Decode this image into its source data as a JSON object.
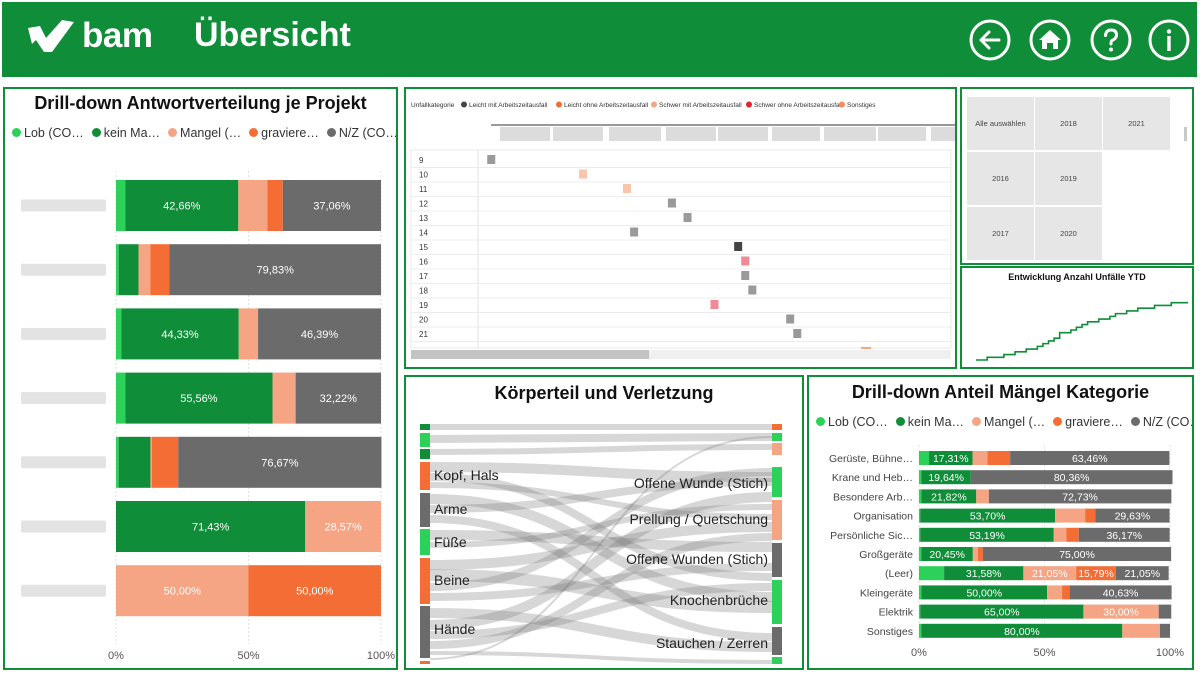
{
  "header": {
    "logo": "bam",
    "title": "Übersicht",
    "nav": [
      {
        "icon": "back-arrow-icon"
      },
      {
        "icon": "home-icon"
      },
      {
        "icon": "help-icon"
      },
      {
        "icon": "info-icon"
      }
    ]
  },
  "colors": {
    "brand": "#0f8d38",
    "lob": "#2bd158",
    "kein": "#0f8d38",
    "mangel": "#f5a583",
    "schwer": "#f36d34",
    "nz": "#6b6b6b"
  },
  "left_panel": {
    "title": "Drill-down Antwortverteilung je Projekt",
    "legend": [
      {
        "label": "Lob (CO…",
        "color": "#2bd158"
      },
      {
        "label": "kein Ma…",
        "color": "#0f8d38"
      },
      {
        "label": "Mangel (…",
        "color": "#f5a583"
      },
      {
        "label": "graviere…",
        "color": "#f36d34"
      },
      {
        "label": "N/Z (CO…",
        "color": "#6b6b6b"
      }
    ]
  },
  "gantt": {
    "legend_title": "Unfallkategorie",
    "legend": [
      {
        "label": "Leicht mit Arbeitszeitausfall",
        "color": "#444444"
      },
      {
        "label": "Leicht ohne Arbeitszeitausfall",
        "color": "#f36d34"
      },
      {
        "label": "Schwer mit Arbeitszeitausfall",
        "color": "#f5a583"
      },
      {
        "label": "Schwer ohne Arbeitszeitausfall",
        "color": "#e8212b"
      },
      {
        "label": "Sonstiges",
        "color": "#f58c5a"
      }
    ],
    "rows": [
      {
        "label": "9",
        "pos": 0.028,
        "color": "#9a9a9a"
      },
      {
        "label": "10",
        "pos": 0.222,
        "color": "#f9c6ac"
      },
      {
        "label": "11",
        "pos": 0.315,
        "color": "#f9c6ac"
      },
      {
        "label": "12",
        "pos": 0.41,
        "color": "#9a9a9a"
      },
      {
        "label": "13",
        "pos": 0.443,
        "color": "#9a9a9a"
      },
      {
        "label": "14",
        "pos": 0.33,
        "color": "#9a9a9a"
      },
      {
        "label": "15",
        "pos": 0.55,
        "color": "#444444"
      },
      {
        "label": "16",
        "pos": 0.565,
        "color": "#f08a96"
      },
      {
        "label": "17",
        "pos": 0.565,
        "color": "#9a9a9a"
      },
      {
        "label": "18",
        "pos": 0.58,
        "color": "#9a9a9a"
      },
      {
        "label": "19",
        "pos": 0.5,
        "color": "#f08a96"
      },
      {
        "label": "20",
        "pos": 0.66,
        "color": "#9a9a9a"
      },
      {
        "label": "21",
        "pos": 0.675,
        "color": "#9a9a9a"
      }
    ]
  },
  "year_slicer": {
    "tiles": [
      {
        "label": "Alle auswählen"
      },
      {
        "label": "2018"
      },
      {
        "label": "2021"
      },
      {
        "label": "2016"
      },
      {
        "label": "2019"
      },
      {
        "label": ""
      },
      {
        "label": "2017"
      },
      {
        "label": "2020"
      },
      {
        "label": ""
      }
    ]
  },
  "ytd_chart": {
    "title": "Entwicklung Anzahl Unfälle YTD"
  },
  "sankey": {
    "title": "Körperteil und Verletzung",
    "left_labels": [
      "Kopf, Hals",
      "Arme",
      "Füße",
      "Beine",
      "Hände"
    ],
    "right_labels": [
      "Offene Wunde (Stich)",
      "Prellung / Quetschung",
      "Offene Wunden (Stich)",
      "Knochenbrüche",
      "Stauchen / Zerren"
    ]
  },
  "right_panel": {
    "title": "Drill-down Anteil Mängel Kategorie",
    "legend": [
      {
        "label": "Lob (CO…",
        "color": "#2bd158"
      },
      {
        "label": "kein Ma…",
        "color": "#0f8d38"
      },
      {
        "label": "Mangel (…",
        "color": "#f5a583"
      },
      {
        "label": "graviere…",
        "color": "#f36d34"
      },
      {
        "label": "N/Z (CO…",
        "color": "#6b6b6b"
      }
    ]
  },
  "chart_data": [
    {
      "type": "bar",
      "orientation": "horizontal",
      "stacked": "100%",
      "title": "Drill-down Antwortverteilung je Projekt",
      "categories": [
        "",
        "",
        "",
        "",
        "",
        "",
        ""
      ],
      "xlim": [
        0,
        100
      ],
      "xticks": [
        "0%",
        "50%",
        "100%"
      ],
      "series": [
        {
          "name": "Lob (CO…",
          "color": "#2bd158",
          "values": [
            3.5,
            1,
            2,
            3.5,
            1,
            0,
            0
          ],
          "labels": [
            "",
            "",
            "",
            "",
            "",
            "",
            ""
          ]
        },
        {
          "name": "kein Ma…",
          "color": "#0f8d38",
          "values": [
            42.66,
            7.5,
            44.33,
            55.56,
            12,
            71.43,
            0
          ],
          "labels": [
            "42,66%",
            "",
            "44,33%",
            "55,56%",
            "",
            "71,43%",
            ""
          ]
        },
        {
          "name": "Mangel (…",
          "color": "#f5a583",
          "values": [
            11,
            4.5,
            7.28,
            8.72,
            0.5,
            28.57,
            50
          ],
          "labels": [
            "",
            "",
            "",
            "",
            "",
            "28,57%",
            "50,00%"
          ]
        },
        {
          "name": "graviere…",
          "color": "#f36d34",
          "values": [
            5.78,
            7.17,
            0,
            0,
            10,
            0,
            50
          ],
          "labels": [
            "",
            "",
            "",
            "",
            "",
            "",
            "50,00%"
          ]
        },
        {
          "name": "N/Z (CO…",
          "color": "#6b6b6b",
          "values": [
            37.06,
            79.83,
            46.39,
            32.22,
            76.67,
            0,
            0
          ],
          "labels": [
            "37,06%",
            "79,83%",
            "46,39%",
            "32,22%",
            "76,67%",
            "",
            ""
          ]
        }
      ]
    },
    {
      "type": "line",
      "title": "Entwicklung Anzahl Unfälle YTD",
      "x": [
        0,
        1,
        2,
        3,
        4,
        5,
        6,
        7,
        8,
        9,
        10,
        11,
        12,
        13,
        14,
        15,
        16,
        17,
        18,
        19,
        20,
        21,
        22,
        23,
        24,
        25,
        26,
        27,
        28,
        29,
        30,
        31,
        32,
        33,
        34,
        35,
        36,
        37,
        38
      ],
      "y": [
        0,
        0,
        1,
        1,
        1,
        2,
        2,
        3,
        3,
        4,
        4,
        5,
        6,
        7,
        8,
        10,
        10,
        11,
        12,
        13,
        14,
        14,
        15,
        15,
        16,
        17,
        17,
        18,
        18,
        19,
        19,
        19,
        20,
        20,
        20,
        21,
        21,
        21,
        21
      ]
    },
    {
      "type": "bar",
      "orientation": "horizontal",
      "stacked": "100%",
      "title": "Drill-down Anteil Mängel Kategorie",
      "categories": [
        "Gerüste, Bühne…",
        "Krane und Heb…",
        "Besondere Arb…",
        "Organisation",
        "Persönliche Sic…",
        "Großgeräte",
        "(Leer)",
        "Kleingeräte",
        "Elektrik",
        "Sonstiges"
      ],
      "xlim": [
        0,
        100
      ],
      "xticks": [
        "0%",
        "50%",
        "100%"
      ],
      "series": [
        {
          "name": "Lob (CO…",
          "color": "#2bd158",
          "values": [
            4,
            1,
            1,
            0.5,
            0.5,
            1,
            10,
            1,
            0.5,
            1
          ],
          "labels": [
            "",
            "",
            "",
            "",
            "",
            "",
            "",
            "",
            "",
            ""
          ]
        },
        {
          "name": "kein Ma…",
          "color": "#0f8d38",
          "values": [
            17.31,
            19.64,
            21.82,
            53.7,
            53.19,
            20.45,
            31.58,
            50,
            65,
            80
          ],
          "labels": [
            "17,31%",
            "19,64%",
            "21,82%",
            "53,70%",
            "53,19%",
            "20,45%",
            "31,58%",
            "50,00%",
            "65,00%",
            "80,00%"
          ]
        },
        {
          "name": "Mangel (…",
          "color": "#f5a583",
          "values": [
            6,
            0,
            5,
            12,
            5,
            2,
            21.05,
            6,
            30,
            15
          ],
          "labels": [
            "",
            "",
            "",
            "",
            "",
            "",
            "21,05%",
            "",
            "30,00%",
            ""
          ]
        },
        {
          "name": "graviere…",
          "color": "#f36d34",
          "values": [
            9,
            0,
            0,
            4,
            5,
            2,
            15.79,
            3,
            0,
            0
          ],
          "labels": [
            "",
            "",
            "",
            "",
            "",
            "",
            "15,79%",
            "",
            "",
            ""
          ]
        },
        {
          "name": "N/Z (CO…",
          "color": "#6b6b6b",
          "values": [
            63.46,
            80.36,
            72.73,
            29.63,
            36.17,
            75,
            21.05,
            40.63,
            5,
            4
          ],
          "labels": [
            "63,46%",
            "80,36%",
            "72,73%",
            "29,63%",
            "36,17%",
            "75,00%",
            "21,05%",
            "40,63%",
            "",
            ""
          ]
        }
      ]
    }
  ]
}
